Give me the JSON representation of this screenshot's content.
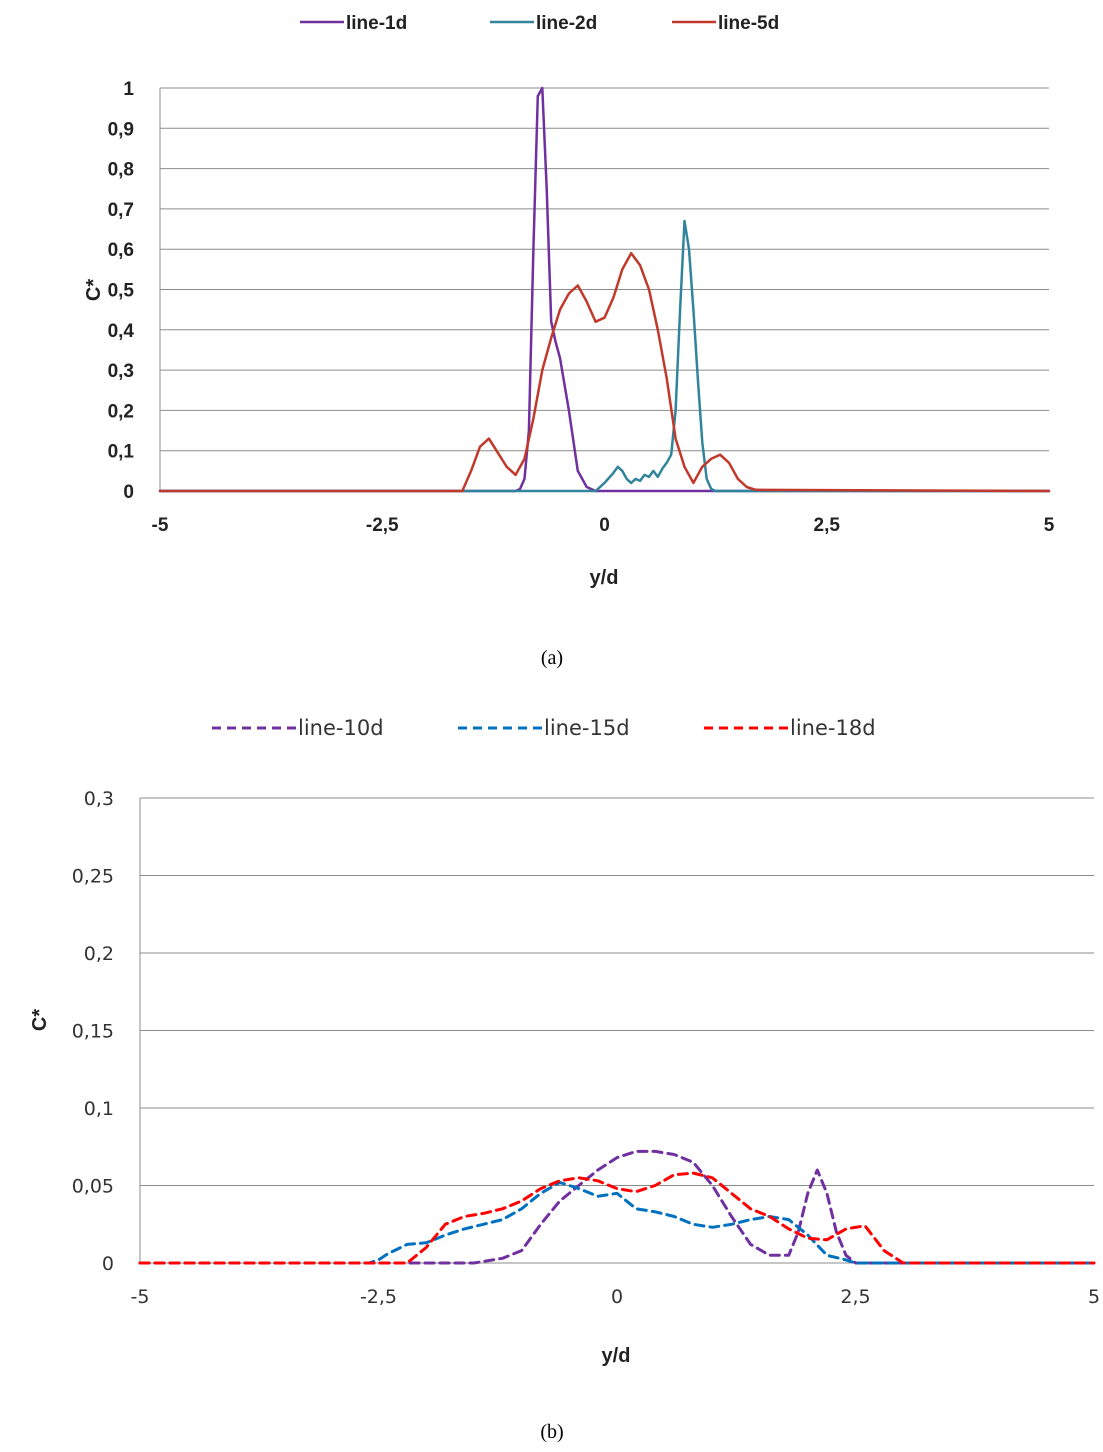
{
  "chart_data": [
    {
      "type": "line",
      "panel_label": "(a)",
      "xlabel": "y/d",
      "ylabel": "C*",
      "xlim": [
        -5,
        5
      ],
      "ylim": [
        0,
        1
      ],
      "x_ticks": [
        "-5",
        "-2,5",
        "0",
        "2,5",
        "5"
      ],
      "y_ticks": [
        "0",
        "0,1",
        "0,2",
        "0,3",
        "0,4",
        "0,5",
        "0,6",
        "0,7",
        "0,8",
        "0,9",
        "1"
      ],
      "grid": "horizontal",
      "legend": "top",
      "series": [
        {
          "name": "line-1d",
          "color": "#7030A0",
          "style": "solid",
          "x": [
            -5,
            -1.0,
            -0.95,
            -0.9,
            -0.85,
            -0.8,
            -0.75,
            -0.7,
            -0.65,
            -0.6,
            -0.55,
            -0.5,
            -0.4,
            -0.3,
            -0.2,
            -0.1,
            0,
            0.1,
            0.2,
            5
          ],
          "y": [
            0,
            0,
            0.005,
            0.03,
            0.15,
            0.6,
            0.98,
            1.0,
            0.75,
            0.42,
            0.37,
            0.33,
            0.2,
            0.05,
            0.01,
            0,
            0,
            0,
            0,
            0
          ]
        },
        {
          "name": "line-2d",
          "color": "#31849B",
          "style": "solid",
          "x": [
            -5,
            -0.1,
            0,
            0.1,
            0.15,
            0.2,
            0.25,
            0.3,
            0.35,
            0.4,
            0.45,
            0.5,
            0.55,
            0.6,
            0.65,
            0.7,
            0.75,
            0.8,
            0.85,
            0.9,
            0.95,
            1.0,
            1.05,
            1.1,
            1.15,
            1.2,
            1.25,
            1.3,
            5
          ],
          "y": [
            0,
            0,
            0.02,
            0.045,
            0.06,
            0.05,
            0.03,
            0.02,
            0.03,
            0.025,
            0.04,
            0.035,
            0.05,
            0.035,
            0.055,
            0.07,
            0.09,
            0.2,
            0.45,
            0.67,
            0.6,
            0.45,
            0.28,
            0.12,
            0.03,
            0.005,
            0,
            0,
            0
          ]
        },
        {
          "name": "line-5d",
          "color": "#C0392B",
          "style": "solid",
          "x": [
            -5,
            -1.6,
            -1.5,
            -1.4,
            -1.3,
            -1.2,
            -1.1,
            -1.0,
            -0.9,
            -0.8,
            -0.7,
            -0.6,
            -0.5,
            -0.4,
            -0.3,
            -0.2,
            -0.1,
            0.0,
            0.1,
            0.2,
            0.3,
            0.4,
            0.5,
            0.6,
            0.7,
            0.8,
            0.9,
            1.0,
            1.1,
            1.2,
            1.3,
            1.4,
            1.5,
            1.6,
            1.7,
            5
          ],
          "y": [
            0,
            0,
            0.05,
            0.11,
            0.13,
            0.095,
            0.06,
            0.04,
            0.08,
            0.18,
            0.3,
            0.38,
            0.45,
            0.49,
            0.51,
            0.47,
            0.42,
            0.43,
            0.48,
            0.55,
            0.59,
            0.56,
            0.5,
            0.4,
            0.28,
            0.13,
            0.06,
            0.02,
            0.06,
            0.08,
            0.09,
            0.07,
            0.03,
            0.01,
            0.003,
            0
          ]
        }
      ]
    },
    {
      "type": "line",
      "panel_label": "(b)",
      "xlabel": "y/d",
      "ylabel": "C*",
      "xlim": [
        -5,
        5
      ],
      "ylim": [
        0,
        0.3
      ],
      "x_ticks": [
        "-5",
        "-2,5",
        "0",
        "2,5",
        "5"
      ],
      "y_ticks": [
        "0",
        "0,05",
        "0,1",
        "0,15",
        "0,2",
        "0,25",
        "0,3"
      ],
      "grid": "horizontal",
      "legend": "top",
      "series": [
        {
          "name": "line-10d",
          "color": "#7030A0",
          "style": "dashed",
          "x": [
            -5,
            -2.0,
            -1.5,
            -1.2,
            -1.0,
            -0.8,
            -0.6,
            -0.4,
            -0.2,
            0.0,
            0.2,
            0.4,
            0.6,
            0.8,
            1.0,
            1.2,
            1.4,
            1.6,
            1.8,
            1.9,
            2.0,
            2.1,
            2.2,
            2.3,
            2.4,
            2.5,
            5
          ],
          "y": [
            0,
            0,
            0,
            0.003,
            0.008,
            0.025,
            0.04,
            0.05,
            0.06,
            0.068,
            0.072,
            0.072,
            0.07,
            0.065,
            0.05,
            0.03,
            0.012,
            0.005,
            0.005,
            0.02,
            0.045,
            0.06,
            0.045,
            0.02,
            0.005,
            0,
            0
          ]
        },
        {
          "name": "line-15d",
          "color": "#0070C0",
          "style": "dashed",
          "x": [
            -5,
            -2.6,
            -2.5,
            -2.4,
            -2.2,
            -2.0,
            -1.8,
            -1.6,
            -1.4,
            -1.2,
            -1.0,
            -0.8,
            -0.6,
            -0.4,
            -0.2,
            0.0,
            0.2,
            0.4,
            0.6,
            0.8,
            1.0,
            1.2,
            1.4,
            1.6,
            1.8,
            2.0,
            2.2,
            2.4,
            2.5,
            5
          ],
          "y": [
            0,
            0,
            0.002,
            0.006,
            0.012,
            0.013,
            0.018,
            0.022,
            0.025,
            0.028,
            0.035,
            0.045,
            0.052,
            0.048,
            0.043,
            0.045,
            0.035,
            0.033,
            0.03,
            0.025,
            0.023,
            0.025,
            0.028,
            0.03,
            0.028,
            0.018,
            0.005,
            0.002,
            0,
            0
          ]
        },
        {
          "name": "line-18d",
          "color": "#FF0000",
          "style": "dashed",
          "x": [
            -5,
            -2.2,
            -2.0,
            -1.8,
            -1.6,
            -1.4,
            -1.2,
            -1.0,
            -0.8,
            -0.6,
            -0.4,
            -0.2,
            0.0,
            0.2,
            0.4,
            0.6,
            0.8,
            1.0,
            1.2,
            1.4,
            1.6,
            1.8,
            2.0,
            2.2,
            2.4,
            2.6,
            2.8,
            3.0,
            5
          ],
          "y": [
            0,
            0,
            0.01,
            0.025,
            0.03,
            0.032,
            0.035,
            0.04,
            0.048,
            0.053,
            0.055,
            0.053,
            0.048,
            0.046,
            0.05,
            0.057,
            0.058,
            0.055,
            0.045,
            0.035,
            0.03,
            0.022,
            0.016,
            0.015,
            0.022,
            0.024,
            0.008,
            0,
            0
          ]
        }
      ]
    }
  ]
}
